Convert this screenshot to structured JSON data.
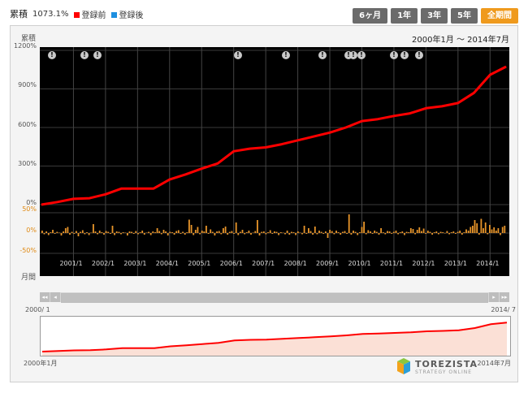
{
  "header": {
    "title": "累積",
    "value": "1073.1%",
    "legend": [
      {
        "label": "登録前",
        "color": "#ff0000"
      },
      {
        "label": "登録後",
        "color": "#1d8fe0"
      }
    ]
  },
  "tabs": [
    {
      "label": "6ヶ月",
      "active": false
    },
    {
      "label": "1年",
      "active": false
    },
    {
      "label": "3年",
      "active": false
    },
    {
      "label": "5年",
      "active": false
    },
    {
      "label": "全期間",
      "active": true
    }
  ],
  "chart": {
    "cumulative_label": "累積",
    "monthly_label": "月間",
    "period_text": "2000年1月 〜 2014年7月",
    "main_yticks": [
      "1200%",
      "900%",
      "600%",
      "300%",
      "0%"
    ],
    "sub_yticks": [
      "50%",
      "0%",
      "-50%"
    ],
    "xticks": [
      "2001/1",
      "2002/1",
      "2003/1",
      "2004/1",
      "2005/1",
      "2006/1",
      "2007/1",
      "2008/1",
      "2009/1",
      "2010/1",
      "2011/1",
      "2012/1",
      "2013/1",
      "2014/1"
    ],
    "info_marker": "!"
  },
  "navigator": {
    "start_label": "2000/ 1",
    "end_label": "2014/ 7",
    "bottom_left": "2000年1月",
    "bottom_right": "2014年7月",
    "buttons": [
      "◂◂",
      "◂",
      "▸",
      "▸▸"
    ]
  },
  "logo": {
    "name": "TOREZISTA",
    "tagline": "STRATEGY ONLINE"
  },
  "chart_data": {
    "type": "line",
    "x_range": [
      "2000-01",
      "2014-07"
    ],
    "ylim": [
      0,
      1200
    ],
    "ylabel": "累積",
    "series": [
      {
        "x": [
          "2000-01",
          "2000-07",
          "2001-01",
          "2001-07",
          "2002-01",
          "2002-07",
          "2003-01",
          "2003-07",
          "2004-01",
          "2004-07",
          "2005-01",
          "2005-07",
          "2006-01",
          "2006-07",
          "2007-01",
          "2007-07",
          "2008-01",
          "2008-07",
          "2009-01",
          "2009-07",
          "2010-01",
          "2010-07",
          "2011-01",
          "2011-07",
          "2012-01",
          "2012-07",
          "2013-01",
          "2013-07",
          "2014-01",
          "2014-07"
        ],
        "values": [
          0,
          20,
          45,
          50,
          80,
          125,
          125,
          125,
          195,
          235,
          280,
          320,
          415,
          435,
          445,
          470,
          500,
          530,
          560,
          600,
          650,
          665,
          690,
          710,
          750,
          765,
          790,
          870,
          1010,
          1073
        ]
      }
    ],
    "monthly": {
      "ylim": [
        -50,
        50
      ],
      "ylabel": "月間",
      "values": [
        6,
        -3,
        4,
        -5,
        2,
        8,
        -2,
        3,
        1,
        -6,
        4,
        12,
        15,
        -4,
        3,
        -2,
        5,
        -8,
        3,
        7,
        -3,
        2,
        -5,
        1,
        22,
        4,
        -3,
        6,
        2,
        -4,
        5,
        3,
        -2,
        18,
        -5,
        4,
        3,
        -3,
        2,
        1,
        -6,
        4,
        3,
        -2,
        5,
        -3,
        2,
        6,
        -4,
        1,
        3,
        -5,
        4,
        2,
        12,
        5,
        -3,
        8,
        4,
        -6,
        3,
        2,
        -4,
        5,
        7,
        -2,
        3,
        -4,
        2,
        33,
        20,
        -5,
        8,
        15,
        -3,
        6,
        4,
        18,
        -2,
        9,
        3,
        -6,
        4,
        5,
        -3,
        12,
        16,
        -4,
        3,
        5,
        -2,
        26,
        -5,
        3,
        8,
        -3,
        2,
        6,
        -4,
        1,
        5,
        32,
        -6,
        3,
        4,
        -3,
        2,
        7,
        -2,
        4,
        3,
        -5,
        2,
        1,
        -3,
        6,
        -4,
        3,
        2,
        -5,
        4,
        1,
        -3,
        18,
        -2,
        12,
        5,
        -4,
        16,
        -3,
        6,
        3,
        -2,
        4,
        -12,
        8,
        5,
        -3,
        6,
        2,
        -4,
        3,
        5,
        -2,
        46,
        -4,
        6,
        3,
        -5,
        2,
        15,
        28,
        -3,
        7,
        4,
        -2,
        6,
        3,
        -4,
        12,
        2,
        -3,
        5,
        4,
        -2,
        3,
        6,
        -3,
        2,
        4,
        -5,
        3,
        2,
        12,
        10,
        -3,
        8,
        14,
        5,
        11,
        -2,
        6,
        3,
        -4,
        2,
        4,
        -3,
        3,
        2,
        -1,
        5,
        -3,
        2,
        4,
        -2,
        3,
        6,
        -4,
        2,
        9,
        6,
        15,
        18,
        32,
        24,
        -4,
        35,
        12,
        26,
        -3,
        20,
        9,
        14,
        6,
        12,
        -5,
        15,
        18
      ]
    }
  }
}
